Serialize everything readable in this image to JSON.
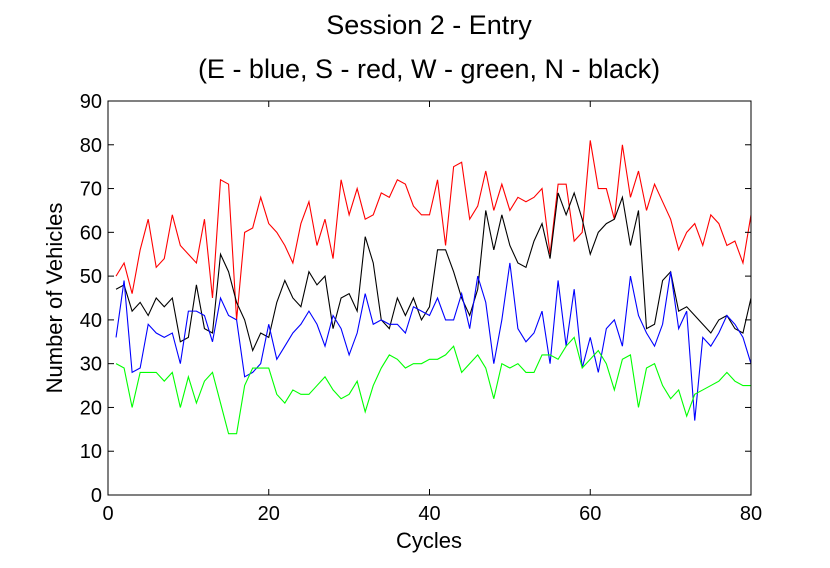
{
  "chart_data": {
    "type": "line",
    "title_lines": [
      "Session 2 - Entry",
      "(E - blue, S - red, W - green, N - black)"
    ],
    "xlabel": "Cycles",
    "ylabel": "Number of Vehicles",
    "xlim": [
      0,
      80
    ],
    "ylim": [
      0,
      90
    ],
    "xticks": [
      0,
      20,
      40,
      60,
      80
    ],
    "yticks": [
      0,
      10,
      20,
      30,
      40,
      50,
      60,
      70,
      80,
      90
    ],
    "grid": false,
    "legend": "in title",
    "x": [
      1,
      2,
      3,
      4,
      5,
      6,
      7,
      8,
      9,
      10,
      11,
      12,
      13,
      14,
      15,
      16,
      17,
      18,
      19,
      20,
      21,
      22,
      23,
      24,
      25,
      26,
      27,
      28,
      29,
      30,
      31,
      32,
      33,
      34,
      35,
      36,
      37,
      38,
      39,
      40,
      41,
      42,
      43,
      44,
      45,
      46,
      47,
      48,
      49,
      50,
      51,
      52,
      53,
      54,
      55,
      56,
      57,
      58,
      59,
      60,
      61,
      62,
      63,
      64,
      65,
      66,
      67,
      68,
      69,
      70,
      71,
      72,
      73,
      74,
      75,
      76,
      77,
      78,
      79,
      80
    ],
    "series": [
      {
        "name": "S",
        "color": "#ff0000",
        "values": [
          50,
          53,
          46,
          56,
          63,
          52,
          54,
          64,
          57,
          55,
          53,
          63,
          45,
          72,
          71,
          40,
          60,
          61,
          68,
          62,
          60,
          57,
          53,
          62,
          67,
          57,
          63,
          54,
          72,
          64,
          70,
          63,
          64,
          69,
          68,
          72,
          71,
          66,
          64,
          64,
          72,
          57,
          75,
          76,
          63,
          66,
          74,
          65,
          71,
          65,
          68,
          67,
          68,
          70,
          55,
          71,
          71,
          58,
          60,
          81,
          70,
          70,
          63,
          80,
          68,
          74,
          65,
          71,
          67,
          63,
          56,
          60,
          62,
          57,
          64,
          62,
          57,
          58,
          53,
          64
        ]
      },
      {
        "name": "N",
        "color": "#000000",
        "values": [
          47,
          48,
          42,
          44,
          41,
          45,
          43,
          45,
          35,
          36,
          48,
          38,
          37,
          55,
          51,
          44,
          40,
          33,
          37,
          36,
          44,
          49,
          45,
          43,
          51,
          48,
          50,
          38,
          45,
          46,
          42,
          59,
          53,
          40,
          38,
          45,
          41,
          45,
          40,
          43,
          56,
          56,
          51,
          45,
          41,
          47,
          65,
          56,
          64,
          57,
          53,
          52,
          58,
          62,
          54,
          69,
          64,
          69,
          63,
          55,
          60,
          62,
          63,
          68,
          57,
          65,
          38,
          39,
          49,
          51,
          42,
          43,
          41,
          39,
          37,
          40,
          41,
          38,
          37,
          45
        ]
      },
      {
        "name": "E",
        "color": "#0000ff",
        "values": [
          36,
          49,
          28,
          29,
          39,
          37,
          36,
          37,
          30,
          42,
          42,
          41,
          35,
          45,
          41,
          40,
          27,
          28,
          30,
          39,
          31,
          34,
          37,
          39,
          42,
          39,
          34,
          41,
          38,
          32,
          37,
          46,
          39,
          40,
          39,
          39,
          37,
          43,
          42,
          41,
          45,
          40,
          40,
          46,
          38,
          50,
          44,
          30,
          40,
          53,
          38,
          35,
          37,
          42,
          30,
          49,
          34,
          47,
          29,
          36,
          28,
          38,
          40,
          34,
          50,
          41,
          37,
          34,
          39,
          51,
          38,
          42,
          17,
          36,
          34,
          37,
          41,
          39,
          36,
          30
        ]
      },
      {
        "name": "W",
        "color": "#00ff00",
        "values": [
          30,
          29,
          20,
          28,
          28,
          28,
          26,
          28,
          20,
          27,
          21,
          26,
          28,
          21,
          14,
          14,
          25,
          29,
          29,
          29,
          23,
          21,
          24,
          23,
          23,
          25,
          27,
          24,
          22,
          23,
          26,
          19,
          25,
          29,
          32,
          31,
          29,
          30,
          30,
          31,
          31,
          32,
          34,
          28,
          30,
          32,
          29,
          22,
          30,
          29,
          30,
          28,
          28,
          32,
          32,
          31,
          34,
          36,
          29,
          31,
          33,
          30,
          24,
          31,
          32,
          20,
          29,
          30,
          25,
          22,
          24,
          18,
          23,
          24,
          25,
          26,
          28,
          26,
          25,
          25
        ]
      }
    ]
  }
}
